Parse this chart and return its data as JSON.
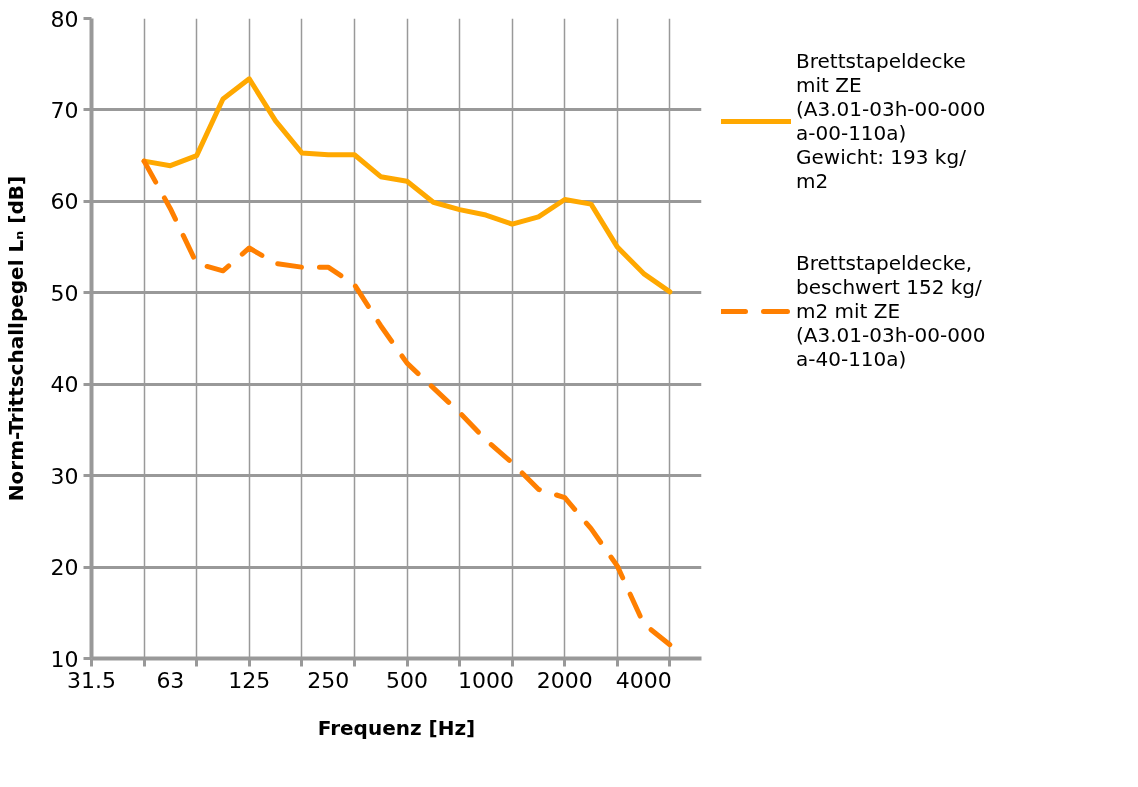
{
  "chart_data": {
    "type": "line",
    "xlabel": "Frequenz [Hz]",
    "ylabel": "Norm-Trittschallpegel Lₙ [dB]",
    "categories": [
      "31.5",
      null,
      null,
      "63",
      null,
      null,
      "125",
      null,
      null,
      "250",
      null,
      null,
      "500",
      null,
      null,
      "1000",
      null,
      null,
      "2000",
      null,
      null,
      "4000",
      null
    ],
    "ylim": [
      10,
      80
    ],
    "yticks": [
      10,
      20,
      30,
      40,
      50,
      60,
      70,
      80
    ],
    "grid": true,
    "legend": "right",
    "series": [
      {
        "name": "Brettstapeldecke mit ZE (A3.01-03h-00-000 a-00-110a) Gewicht: 193 kg/m2",
        "color": "#ffa800",
        "line_style": "solid",
        "values": [
          null,
          null,
          64.4,
          63.9,
          65.0,
          71.2,
          73.4,
          68.8,
          65.3,
          65.1,
          65.1,
          62.7,
          62.2,
          59.9,
          59.1,
          58.5,
          57.5,
          58.3,
          60.2,
          59.7,
          55.0,
          52.1,
          50.1
        ]
      },
      {
        "name": "Brettstapeldecke, beschwert 152 kg/m2 mit ZE (A3.01-03h-00-000 a-40-110a)",
        "color": "#ff7f00",
        "line_style": "dashed",
        "values": [
          null,
          null,
          64.4,
          59.2,
          53.2,
          52.4,
          54.9,
          53.2,
          52.8,
          52.8,
          50.9,
          46.4,
          42.3,
          39.6,
          36.9,
          33.9,
          31.4,
          28.5,
          27.6,
          24.2,
          20.1,
          13.8,
          11.5
        ]
      }
    ]
  }
}
